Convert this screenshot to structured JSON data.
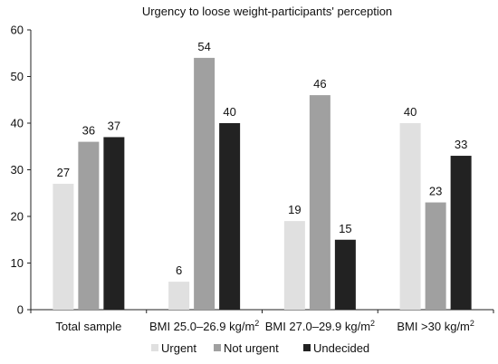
{
  "chart_data": {
    "type": "bar",
    "title": "Urgency to loose weight-participants' perception",
    "categories": [
      "Total sample",
      "BMI 25.0–26.9 kg/m²",
      "BMI 27.0–29.9 kg/m²",
      "BMI >30 kg/m²"
    ],
    "series": [
      {
        "name": "Urgent",
        "values": [
          27,
          6,
          19,
          40
        ],
        "color": "#e0e0e0"
      },
      {
        "name": "Not urgent",
        "values": [
          36,
          54,
          46,
          23
        ],
        "color": "#a0a0a0"
      },
      {
        "name": "Undecided",
        "values": [
          37,
          40,
          15,
          33
        ],
        "color": "#222222"
      }
    ],
    "ylim": [
      0,
      60
    ],
    "yticks": [
      0,
      10,
      20,
      30,
      40,
      50,
      60
    ],
    "grid": false,
    "legend_position": "bottom"
  }
}
